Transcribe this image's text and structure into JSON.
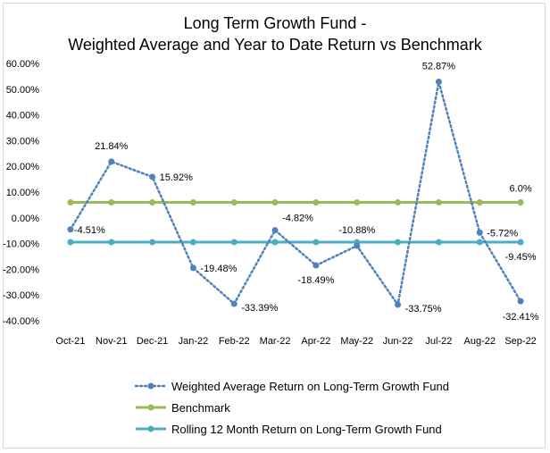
{
  "chart_data": {
    "type": "line",
    "title_line1": "Long Term Growth Fund -",
    "title_line2": "Weighted Average and Year to Date Return vs Benchmark",
    "categories": [
      "Oct-21",
      "Nov-21",
      "Dec-21",
      "Jan-22",
      "Feb-22",
      "Mar-22",
      "Apr-22",
      "May-22",
      "Jun-22",
      "Jul-22",
      "Aug-22",
      "Sep-22"
    ],
    "y_ticks": [
      "60.00%",
      "50.00%",
      "40.00%",
      "30.00%",
      "20.00%",
      "10.00%",
      "0.00%",
      "-10.00%",
      "-20.00%",
      "-30.00%",
      "-40.00%"
    ],
    "ylim": [
      -40,
      60
    ],
    "series": [
      {
        "name": "Weighted Average Return on Long-Term Growth Fund",
        "color": "#4f81bd",
        "style": "dotted",
        "values": [
          -4.51,
          21.84,
          15.92,
          -19.48,
          -33.39,
          -4.82,
          -18.49,
          -10.88,
          -33.75,
          52.87,
          -5.72,
          -32.41
        ],
        "labels": [
          "-4.51%",
          "21.84%",
          "15.92%",
          "-19.48%",
          "-33.39%",
          "-4.82%",
          "-18.49%",
          "-10.88%",
          "-33.75%",
          "52.87%",
          "-5.72%",
          "-32.41%"
        ]
      },
      {
        "name": "Benchmark",
        "color": "#9bbb59",
        "style": "solid",
        "values": [
          6,
          6,
          6,
          6,
          6,
          6,
          6,
          6,
          6,
          6,
          6,
          6
        ],
        "end_label": "6.0%"
      },
      {
        "name": "Rolling 12 Month Return on Long-Term Growth Fund",
        "color": "#4bacc6",
        "style": "solid",
        "values": [
          -9.45,
          -9.45,
          -9.45,
          -9.45,
          -9.45,
          -9.45,
          -9.45,
          -9.45,
          -9.45,
          -9.45,
          -9.45,
          -9.45
        ],
        "end_label": "-9.45%"
      }
    ]
  }
}
